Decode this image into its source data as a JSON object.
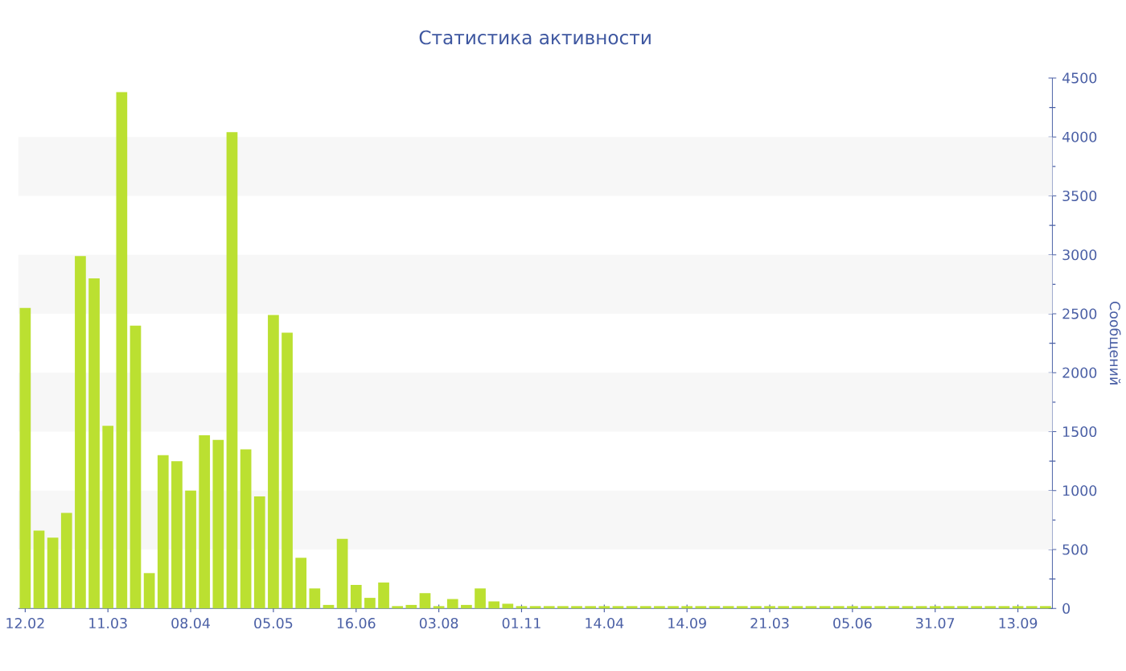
{
  "chart_data": {
    "type": "bar",
    "title": "Статистика активности",
    "ylabel": "Сообщений",
    "categories": [
      "12.02",
      null,
      null,
      null,
      null,
      null,
      "11.03",
      null,
      null,
      null,
      null,
      null,
      "08.04",
      null,
      null,
      null,
      null,
      null,
      "05.05",
      null,
      null,
      null,
      null,
      null,
      "16.06",
      null,
      null,
      null,
      null,
      null,
      "03.08",
      null,
      null,
      null,
      null,
      null,
      "01.11",
      null,
      null,
      null,
      null,
      null,
      "14.04",
      null,
      null,
      null,
      null,
      null,
      "14.09",
      null,
      null,
      null,
      null,
      null,
      "21.03",
      null,
      null,
      null,
      null,
      null,
      "05.06",
      null,
      null,
      null,
      null,
      null,
      "31.07",
      null,
      null,
      null,
      null,
      null,
      "13.09",
      null,
      null
    ],
    "values": [
      2550,
      660,
      600,
      810,
      2990,
      2800,
      1550,
      4380,
      2400,
      300,
      1300,
      1250,
      1000,
      1470,
      1430,
      4040,
      1350,
      950,
      2490,
      2340,
      430,
      170,
      30,
      590,
      200,
      90,
      220,
      20,
      30,
      130,
      20,
      80,
      30,
      170,
      60,
      40,
      20,
      20,
      20,
      20,
      20,
      20,
      20,
      20,
      20,
      20,
      20,
      20,
      20,
      20,
      20,
      20,
      20,
      20,
      20,
      20,
      20,
      20,
      20,
      20,
      20,
      20,
      20,
      20,
      20,
      20,
      20,
      20,
      20,
      20,
      20,
      20,
      20,
      20,
      20
    ],
    "color": "#bbe031",
    "ylim": [
      0,
      4500
    ],
    "yticks": [
      0,
      500,
      1000,
      1500,
      2000,
      2500,
      3000,
      3500,
      4000,
      4500
    ],
    "bands": [
      {
        "axis": "y",
        "from": 500,
        "to": 1000,
        "color": "#f7f7f7"
      },
      {
        "axis": "y",
        "from": 1500,
        "to": 2000,
        "color": "#f7f7f7"
      },
      {
        "axis": "y",
        "from": 2500,
        "to": 3000,
        "color": "#f7f7f7"
      },
      {
        "axis": "y",
        "from": 3500,
        "to": 4000,
        "color": "#f7f7f7"
      }
    ]
  }
}
